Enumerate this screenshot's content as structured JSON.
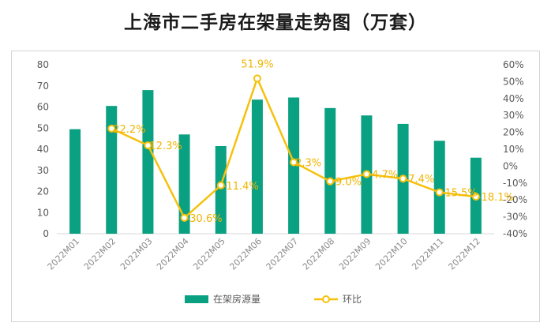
{
  "title": "上海市二手房在架量走势图（万套）",
  "colors": {
    "bar": "#0aa082",
    "line": "#f6c10d",
    "label": "#f0b400",
    "grid": "#d9d9d9"
  },
  "chart_data": {
    "type": "bar+line",
    "title": "上海市二手房在架量走势图（万套）",
    "categories": [
      "2022M01",
      "2022M02",
      "2022M03",
      "2022M04",
      "2022M05",
      "2022M06",
      "2022M07",
      "2022M08",
      "2022M09",
      "2022M10",
      "2022M11",
      "2022M12"
    ],
    "left_axis": {
      "ylim": [
        0,
        80
      ],
      "step": 10,
      "ticks": [
        "0",
        "10",
        "20",
        "30",
        "40",
        "50",
        "60",
        "70",
        "80"
      ]
    },
    "right_axis": {
      "ylim": [
        -40,
        60
      ],
      "step": 10,
      "ticks": [
        "-40%",
        "-30%",
        "-20%",
        "-10%",
        "0%",
        "10%",
        "20%",
        "30%",
        "40%",
        "50%",
        "60%"
      ]
    },
    "series": [
      {
        "name": "在架房源量",
        "type": "bar",
        "axis": "left",
        "values": [
          49.5,
          60.5,
          68,
          47,
          41.5,
          63.5,
          64.5,
          59.5,
          56,
          52,
          44,
          36
        ]
      },
      {
        "name": "环比",
        "type": "line",
        "axis": "right",
        "values": [
          null,
          22.2,
          12.3,
          -30.6,
          -11.4,
          51.9,
          2.3,
          -9.0,
          -4.7,
          -7.4,
          -15.5,
          -18.1
        ],
        "labels": [
          "",
          "22.2%",
          "12.3%",
          "-30.6%",
          "-11.4%",
          "51.9%",
          "2.3%",
          "-9.0%",
          "-4.7%",
          "-7.4%",
          "-15.5%",
          "-18.1%"
        ]
      }
    ],
    "legend": {
      "placement": "bottom",
      "entries": [
        "在架房源量",
        "环比"
      ]
    },
    "grid": false
  }
}
